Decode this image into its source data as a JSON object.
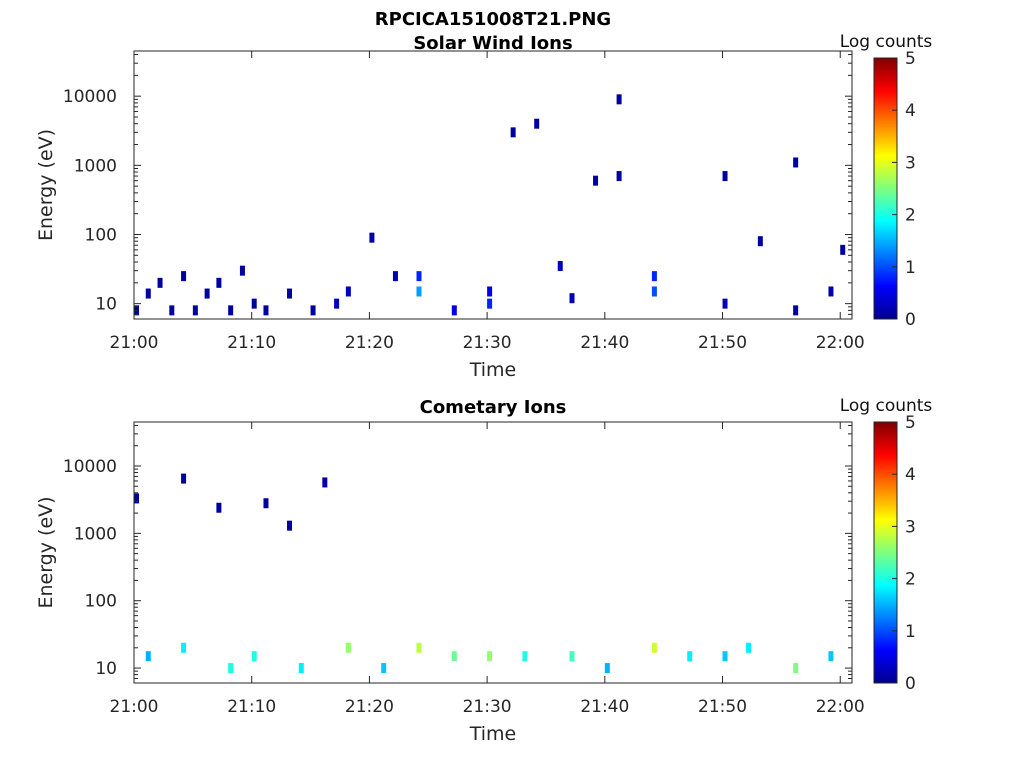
{
  "title": "RPCICA151008T21.PNG",
  "colorbar": {
    "label": "Log counts",
    "ticks": [
      0,
      1,
      2,
      3,
      4,
      5
    ],
    "colormap": "jet",
    "colors": [
      "#00008f",
      "#0000ff",
      "#007fff",
      "#00ffff",
      "#7fff7f",
      "#ffff00",
      "#ff7f00",
      "#ff0000",
      "#7f0000"
    ]
  },
  "chart_data": [
    {
      "type": "heatmap",
      "title": "Solar Wind Ions",
      "xlabel": "Time",
      "ylabel": "Energy (eV)",
      "yscale": "log",
      "ylim": [
        6,
        45000
      ],
      "xlim": [
        "21:00",
        "22:01"
      ],
      "x_ticks": [
        "21:00",
        "21:10",
        "21:20",
        "21:30",
        "21:40",
        "21:50",
        "22:00"
      ],
      "y_ticks": [
        "10",
        "100",
        "1000",
        "10000"
      ],
      "zlim": [
        0,
        5
      ],
      "cells": [
        [
          "21:00",
          8,
          0.1
        ],
        [
          "21:01",
          14,
          0.1
        ],
        [
          "21:02",
          20,
          0.1
        ],
        [
          "21:03",
          8,
          0.1
        ],
        [
          "21:04",
          25,
          0.1
        ],
        [
          "21:05",
          8,
          0.1
        ],
        [
          "21:06",
          14,
          0.1
        ],
        [
          "21:07",
          20,
          0.1
        ],
        [
          "21:08",
          8,
          0.1
        ],
        [
          "21:09",
          30,
          0.1
        ],
        [
          "21:10",
          10,
          0.1
        ],
        [
          "21:11",
          8,
          0.1
        ],
        [
          "21:13",
          14,
          0.1
        ],
        [
          "21:15",
          8,
          0.1
        ],
        [
          "21:17",
          10,
          0.2
        ],
        [
          "21:18",
          15,
          0.3
        ],
        [
          "21:20",
          90,
          0.1
        ],
        [
          "21:22",
          25,
          0.2
        ],
        [
          "21:24",
          15,
          1.4
        ],
        [
          "21:24",
          25,
          0.8
        ],
        [
          "21:27",
          8,
          0.5
        ],
        [
          "21:30",
          15,
          0.5
        ],
        [
          "21:30",
          10,
          0.8
        ],
        [
          "21:32",
          3000,
          0.1
        ],
        [
          "21:34",
          4000,
          0.1
        ],
        [
          "21:36",
          35,
          0.3
        ],
        [
          "21:37",
          12,
          0.3
        ],
        [
          "21:39",
          600,
          0.1
        ],
        [
          "21:41",
          700,
          0.1
        ],
        [
          "21:41",
          9000,
          0.1
        ],
        [
          "21:44",
          15,
          1.0
        ],
        [
          "21:44",
          25,
          0.8
        ],
        [
          "21:50",
          10,
          0.3
        ],
        [
          "21:50",
          700,
          0.1
        ],
        [
          "21:53",
          80,
          0.1
        ],
        [
          "21:56",
          8,
          0.1
        ],
        [
          "21:56",
          1100,
          0.1
        ],
        [
          "21:59",
          15,
          0.2
        ],
        [
          "22:00",
          60,
          0.1
        ]
      ]
    },
    {
      "type": "heatmap",
      "title": "Cometary Ions",
      "xlabel": "Time",
      "ylabel": "Energy (eV)",
      "yscale": "log",
      "ylim": [
        6,
        45000
      ],
      "xlim": [
        "21:00",
        "22:01"
      ],
      "x_ticks": [
        "21:00",
        "21:10",
        "21:20",
        "21:30",
        "21:40",
        "21:50",
        "22:00"
      ],
      "y_ticks": [
        "10",
        "100",
        "1000",
        "10000"
      ],
      "zlim": [
        0,
        5
      ],
      "cells": [
        [
          "21:01",
          15,
          1.5
        ],
        [
          "21:04",
          20,
          1.8
        ],
        [
          "21:08",
          10,
          2.0
        ],
        [
          "21:10",
          15,
          2.0
        ],
        [
          "21:14",
          10,
          1.8
        ],
        [
          "21:18",
          20,
          2.6
        ],
        [
          "21:21",
          10,
          1.6
        ],
        [
          "21:24",
          20,
          2.8
        ],
        [
          "21:27",
          15,
          2.4
        ],
        [
          "21:30",
          15,
          2.6
        ],
        [
          "21:33",
          15,
          2.0
        ],
        [
          "21:37",
          15,
          2.2
        ],
        [
          "21:40",
          10,
          1.5
        ],
        [
          "21:44",
          20,
          2.9
        ],
        [
          "21:47",
          15,
          1.8
        ],
        [
          "21:50",
          15,
          1.6
        ],
        [
          "21:52",
          20,
          1.8
        ],
        [
          "21:56",
          10,
          2.5
        ],
        [
          "21:59",
          15,
          1.6
        ],
        [
          "21:04",
          6500,
          0.1
        ],
        [
          "21:07",
          2400,
          0.1
        ],
        [
          "21:11",
          2800,
          0.1
        ],
        [
          "21:13",
          1300,
          0.1
        ],
        [
          "21:16",
          5700,
          0.1
        ],
        [
          "21:00",
          3300,
          0.1
        ]
      ]
    }
  ]
}
